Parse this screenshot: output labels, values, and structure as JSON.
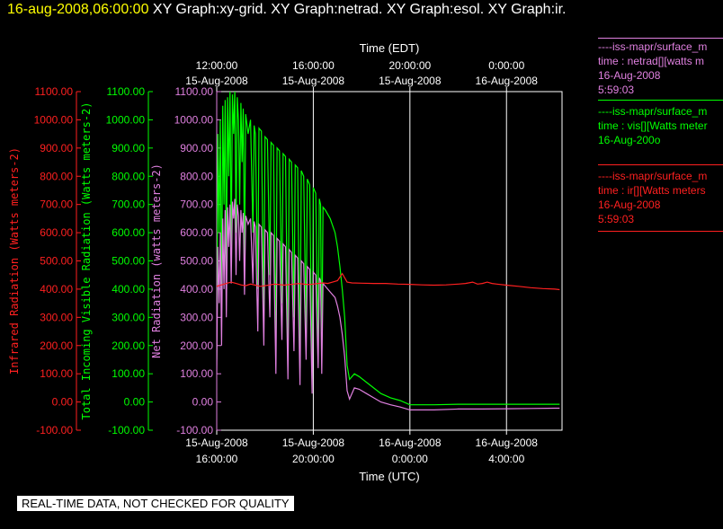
{
  "header": {
    "timestamp": "16-aug-2008,06:00:00",
    "graph_titles": [
      "XY Graph:xy-grid.",
      "XY Graph:netrad.",
      "XY Graph:esol.",
      "XY Graph:ir."
    ]
  },
  "legend": [
    {
      "name": "----iss-mapr/surface_m",
      "line2": "time : netrad[][watts m",
      "line3": "16-Aug-2008",
      "line4": "5:59:03",
      "color": "#e080e0"
    },
    {
      "name": "----iss-mapr/surface_m",
      "line2": "time : vis[][Watts meter",
      "line3": "16-Aug-200o",
      "line4": "",
      "color": "#00ff00"
    },
    {
      "name": "----iss-mapr/surface_m",
      "line2": "time : ir[][Watts meters",
      "line3": "16-Aug-2008",
      "line4": "5:59:03",
      "color": "#ff2020"
    }
  ],
  "disclaimer": "REAL-TIME DATA, NOT CHECKED FOR QUALITY",
  "chart_data": {
    "type": "line",
    "top_axis": {
      "title": "Time (EDT)",
      "ticks": [
        {
          "t": 16,
          "line1": "12:00:00",
          "line2": "15-Aug-2008"
        },
        {
          "t": 20,
          "line1": "16:00:00",
          "line2": "15-Aug-2008"
        },
        {
          "t": 24,
          "line1": "20:00:00",
          "line2": "15-Aug-2008"
        },
        {
          "t": 28,
          "line1": "0:00:00",
          "line2": "16-Aug-2008"
        }
      ]
    },
    "bottom_axis": {
      "title": "Time (UTC)",
      "ticks": [
        {
          "t": 16,
          "line1": "15-Aug-2008",
          "line2": "16:00:00"
        },
        {
          "t": 20,
          "line1": "15-Aug-2008",
          "line2": "20:00:00"
        },
        {
          "t": 24,
          "line1": "16-Aug-2008",
          "line2": "0:00:00"
        },
        {
          "t": 28,
          "line1": "16-Aug-2008",
          "line2": "4:00:00"
        }
      ]
    },
    "xlim": [
      16,
      30.3
    ],
    "grid": true,
    "y_axes": [
      {
        "id": "ir",
        "label": "Infrared Radiation (Watts meters-2)",
        "color": "#ff2020",
        "ylim": [
          -100,
          1100
        ],
        "ticks": [
          "-100.00",
          "0.00",
          "100.00",
          "200.00",
          "300.00",
          "400.00",
          "500.00",
          "600.00",
          "700.00",
          "800.00",
          "900.00",
          "1000.00",
          "1100.00"
        ]
      },
      {
        "id": "vis",
        "label": "Total Incoming Visible Radiation (Watts meters-2)",
        "color": "#00ff00",
        "ylim": [
          -100,
          1100
        ],
        "ticks": [
          "-100.00",
          "0.00",
          "100.00",
          "200.00",
          "300.00",
          "400.00",
          "500.00",
          "600.00",
          "700.00",
          "800.00",
          "900.00",
          "1000.00",
          "1100.00"
        ]
      },
      {
        "id": "netrad",
        "label": "Net Radiation (watts meters-2)",
        "color": "#e080e0",
        "ylim": [
          -100,
          1100
        ],
        "ticks": [
          "-100.00",
          "0.00",
          "100.00",
          "200.00",
          "300.00",
          "400.00",
          "500.00",
          "600.00",
          "700.00",
          "800.00",
          "900.00",
          "1000.00",
          "1100.00"
        ]
      }
    ],
    "series": [
      {
        "id": "vis",
        "color": "#00ff00",
        "points": [
          [
            16.0,
            150
          ],
          [
            16.05,
            950
          ],
          [
            16.1,
            600
          ],
          [
            16.15,
            1000
          ],
          [
            16.2,
            300
          ],
          [
            16.25,
            1050
          ],
          [
            16.3,
            700
          ],
          [
            16.35,
            1070
          ],
          [
            16.4,
            450
          ],
          [
            16.45,
            1080
          ],
          [
            16.5,
            800
          ],
          [
            16.55,
            1100
          ],
          [
            16.6,
            550
          ],
          [
            16.65,
            1090
          ],
          [
            16.7,
            950
          ],
          [
            16.75,
            1100
          ],
          [
            16.8,
            600
          ],
          [
            16.85,
            1080
          ],
          [
            16.9,
            1000
          ],
          [
            16.95,
            700
          ],
          [
            17.0,
            1060
          ],
          [
            17.05,
            850
          ],
          [
            17.1,
            1040
          ],
          [
            17.15,
            500
          ],
          [
            17.2,
            1020
          ],
          [
            17.3,
            950
          ],
          [
            17.4,
            1000
          ],
          [
            17.5,
            600
          ],
          [
            17.55,
            980
          ],
          [
            17.6,
            950
          ],
          [
            17.7,
            400
          ],
          [
            17.75,
            970
          ],
          [
            17.85,
            960
          ],
          [
            17.95,
            300
          ],
          [
            18.0,
            940
          ],
          [
            18.1,
            930
          ],
          [
            18.2,
            450
          ],
          [
            18.25,
            920
          ],
          [
            18.35,
            910
          ],
          [
            18.45,
            200
          ],
          [
            18.5,
            900
          ],
          [
            18.6,
            890
          ],
          [
            18.7,
            350
          ],
          [
            18.75,
            880
          ],
          [
            18.85,
            870
          ],
          [
            18.95,
            150
          ],
          [
            19.0,
            860
          ],
          [
            19.1,
            850
          ],
          [
            19.2,
            300
          ],
          [
            19.25,
            840
          ],
          [
            19.35,
            830
          ],
          [
            19.45,
            120
          ],
          [
            19.5,
            820
          ],
          [
            19.6,
            800
          ],
          [
            19.7,
            250
          ],
          [
            19.75,
            790
          ],
          [
            19.85,
            770
          ],
          [
            19.95,
            80
          ],
          [
            20.0,
            760
          ],
          [
            20.1,
            740
          ],
          [
            20.2,
            200
          ],
          [
            20.25,
            720
          ],
          [
            20.3,
            700
          ],
          [
            20.35,
            150
          ],
          [
            20.4,
            690
          ],
          [
            20.5,
            680
          ],
          [
            20.7,
            650
          ],
          [
            20.9,
            600
          ],
          [
            21.0,
            550
          ],
          [
            21.1,
            480
          ],
          [
            21.2,
            400
          ],
          [
            21.3,
            300
          ],
          [
            21.4,
            130
          ],
          [
            21.5,
            80
          ],
          [
            21.7,
            100
          ],
          [
            21.9,
            90
          ],
          [
            22.2,
            70
          ],
          [
            22.5,
            50
          ],
          [
            22.8,
            30
          ],
          [
            23.2,
            15
          ],
          [
            23.6,
            5
          ],
          [
            24.0,
            -10
          ],
          [
            25.0,
            -10
          ],
          [
            26.0,
            -8
          ],
          [
            27.0,
            -8
          ],
          [
            28.0,
            -8
          ],
          [
            29.0,
            -8
          ],
          [
            30.0,
            -8
          ],
          [
            30.2,
            -8
          ]
        ]
      },
      {
        "id": "netrad",
        "color": "#e080e0",
        "points": [
          [
            16.0,
            100
          ],
          [
            16.05,
            550
          ],
          [
            16.1,
            350
          ],
          [
            16.15,
            600
          ],
          [
            16.2,
            200
          ],
          [
            16.25,
            650
          ],
          [
            16.3,
            400
          ],
          [
            16.35,
            680
          ],
          [
            16.4,
            300
          ],
          [
            16.45,
            690
          ],
          [
            16.5,
            550
          ],
          [
            16.55,
            700
          ],
          [
            16.6,
            420
          ],
          [
            16.65,
            710
          ],
          [
            16.7,
            650
          ],
          [
            16.75,
            720
          ],
          [
            16.8,
            450
          ],
          [
            16.85,
            700
          ],
          [
            16.9,
            660
          ],
          [
            16.95,
            500
          ],
          [
            17.0,
            680
          ],
          [
            17.05,
            600
          ],
          [
            17.1,
            670
          ],
          [
            17.15,
            380
          ],
          [
            17.2,
            660
          ],
          [
            17.3,
            630
          ],
          [
            17.4,
            650
          ],
          [
            17.5,
            420
          ],
          [
            17.55,
            640
          ],
          [
            17.6,
            620
          ],
          [
            17.7,
            250
          ],
          [
            17.75,
            630
          ],
          [
            17.85,
            620
          ],
          [
            17.95,
            200
          ],
          [
            18.0,
            610
          ],
          [
            18.1,
            600
          ],
          [
            18.2,
            300
          ],
          [
            18.25,
            600
          ],
          [
            18.35,
            590
          ],
          [
            18.45,
            100
          ],
          [
            18.5,
            580
          ],
          [
            18.6,
            570
          ],
          [
            18.7,
            220
          ],
          [
            18.75,
            560
          ],
          [
            18.85,
            550
          ],
          [
            18.95,
            80
          ],
          [
            19.0,
            540
          ],
          [
            19.1,
            530
          ],
          [
            19.2,
            180
          ],
          [
            19.25,
            520
          ],
          [
            19.35,
            510
          ],
          [
            19.45,
            60
          ],
          [
            19.5,
            500
          ],
          [
            19.6,
            490
          ],
          [
            19.7,
            150
          ],
          [
            19.75,
            480
          ],
          [
            19.85,
            470
          ],
          [
            19.95,
            30
          ],
          [
            20.0,
            460
          ],
          [
            20.1,
            450
          ],
          [
            20.2,
            120
          ],
          [
            20.25,
            440
          ],
          [
            20.3,
            430
          ],
          [
            20.35,
            100
          ],
          [
            20.4,
            420
          ],
          [
            20.5,
            410
          ],
          [
            20.7,
            390
          ],
          [
            20.9,
            370
          ],
          [
            21.0,
            340
          ],
          [
            21.1,
            300
          ],
          [
            21.2,
            240
          ],
          [
            21.3,
            160
          ],
          [
            21.4,
            40
          ],
          [
            21.5,
            10
          ],
          [
            21.7,
            50
          ],
          [
            21.9,
            45
          ],
          [
            22.2,
            30
          ],
          [
            22.5,
            15
          ],
          [
            22.8,
            0
          ],
          [
            23.2,
            -10
          ],
          [
            23.6,
            -18
          ],
          [
            24.0,
            -28
          ],
          [
            25.0,
            -28
          ],
          [
            26.0,
            -25
          ],
          [
            27.0,
            -25
          ],
          [
            28.0,
            -24
          ],
          [
            29.0,
            -23
          ],
          [
            30.0,
            -22
          ],
          [
            30.2,
            -22
          ]
        ]
      },
      {
        "id": "ir",
        "color": "#ff2020",
        "points": [
          [
            16.0,
            410
          ],
          [
            16.2,
            415
          ],
          [
            16.4,
            420
          ],
          [
            16.6,
            425
          ],
          [
            16.8,
            420
          ],
          [
            17.0,
            415
          ],
          [
            17.2,
            412
          ],
          [
            17.4,
            418
          ],
          [
            17.6,
            414
          ],
          [
            17.8,
            410
          ],
          [
            18.0,
            412
          ],
          [
            18.2,
            415
          ],
          [
            18.4,
            418
          ],
          [
            18.6,
            416
          ],
          [
            18.8,
            414
          ],
          [
            19.0,
            416
          ],
          [
            19.2,
            418
          ],
          [
            19.4,
            420
          ],
          [
            19.6,
            418
          ],
          [
            19.8,
            416
          ],
          [
            20.0,
            418
          ],
          [
            20.2,
            420
          ],
          [
            20.4,
            422
          ],
          [
            20.6,
            420
          ],
          [
            20.8,
            425
          ],
          [
            21.0,
            430
          ],
          [
            21.2,
            455
          ],
          [
            21.4,
            425
          ],
          [
            21.6,
            422
          ],
          [
            22.0,
            421
          ],
          [
            22.5,
            420
          ],
          [
            23.0,
            420
          ],
          [
            23.5,
            418
          ],
          [
            24.0,
            417
          ],
          [
            24.5,
            415
          ],
          [
            25.0,
            414
          ],
          [
            25.5,
            415
          ],
          [
            26.0,
            418
          ],
          [
            26.3,
            420
          ],
          [
            26.6,
            425
          ],
          [
            26.8,
            418
          ],
          [
            27.0,
            420
          ],
          [
            27.2,
            425
          ],
          [
            27.4,
            420
          ],
          [
            27.6,
            418
          ],
          [
            28.0,
            414
          ],
          [
            28.5,
            410
          ],
          [
            29.0,
            405
          ],
          [
            29.5,
            402
          ],
          [
            30.0,
            400
          ],
          [
            30.2,
            398
          ]
        ]
      }
    ]
  }
}
